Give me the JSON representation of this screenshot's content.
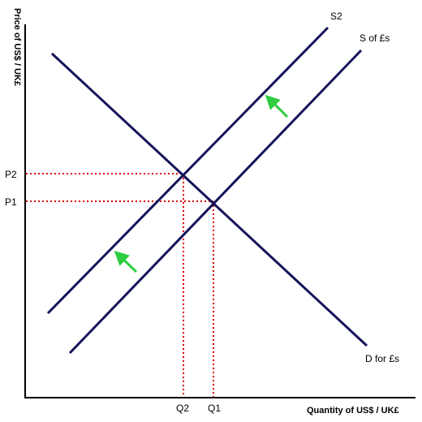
{
  "diagram": {
    "y_axis_title": "Price of US$ / UK£",
    "x_axis_title": "Quantity of US$ / UK£",
    "curves": {
      "supply_original": "S of £s",
      "supply_shifted": "S2",
      "demand": "D for £s"
    },
    "price_labels": [
      "P2",
      "P1"
    ],
    "quantity_labels": [
      "Q2",
      "Q1"
    ],
    "colors": {
      "curve": "#14145a",
      "axis": "#000000",
      "guide": "#e00000",
      "shift_arrow": "#2ecc40"
    }
  }
}
